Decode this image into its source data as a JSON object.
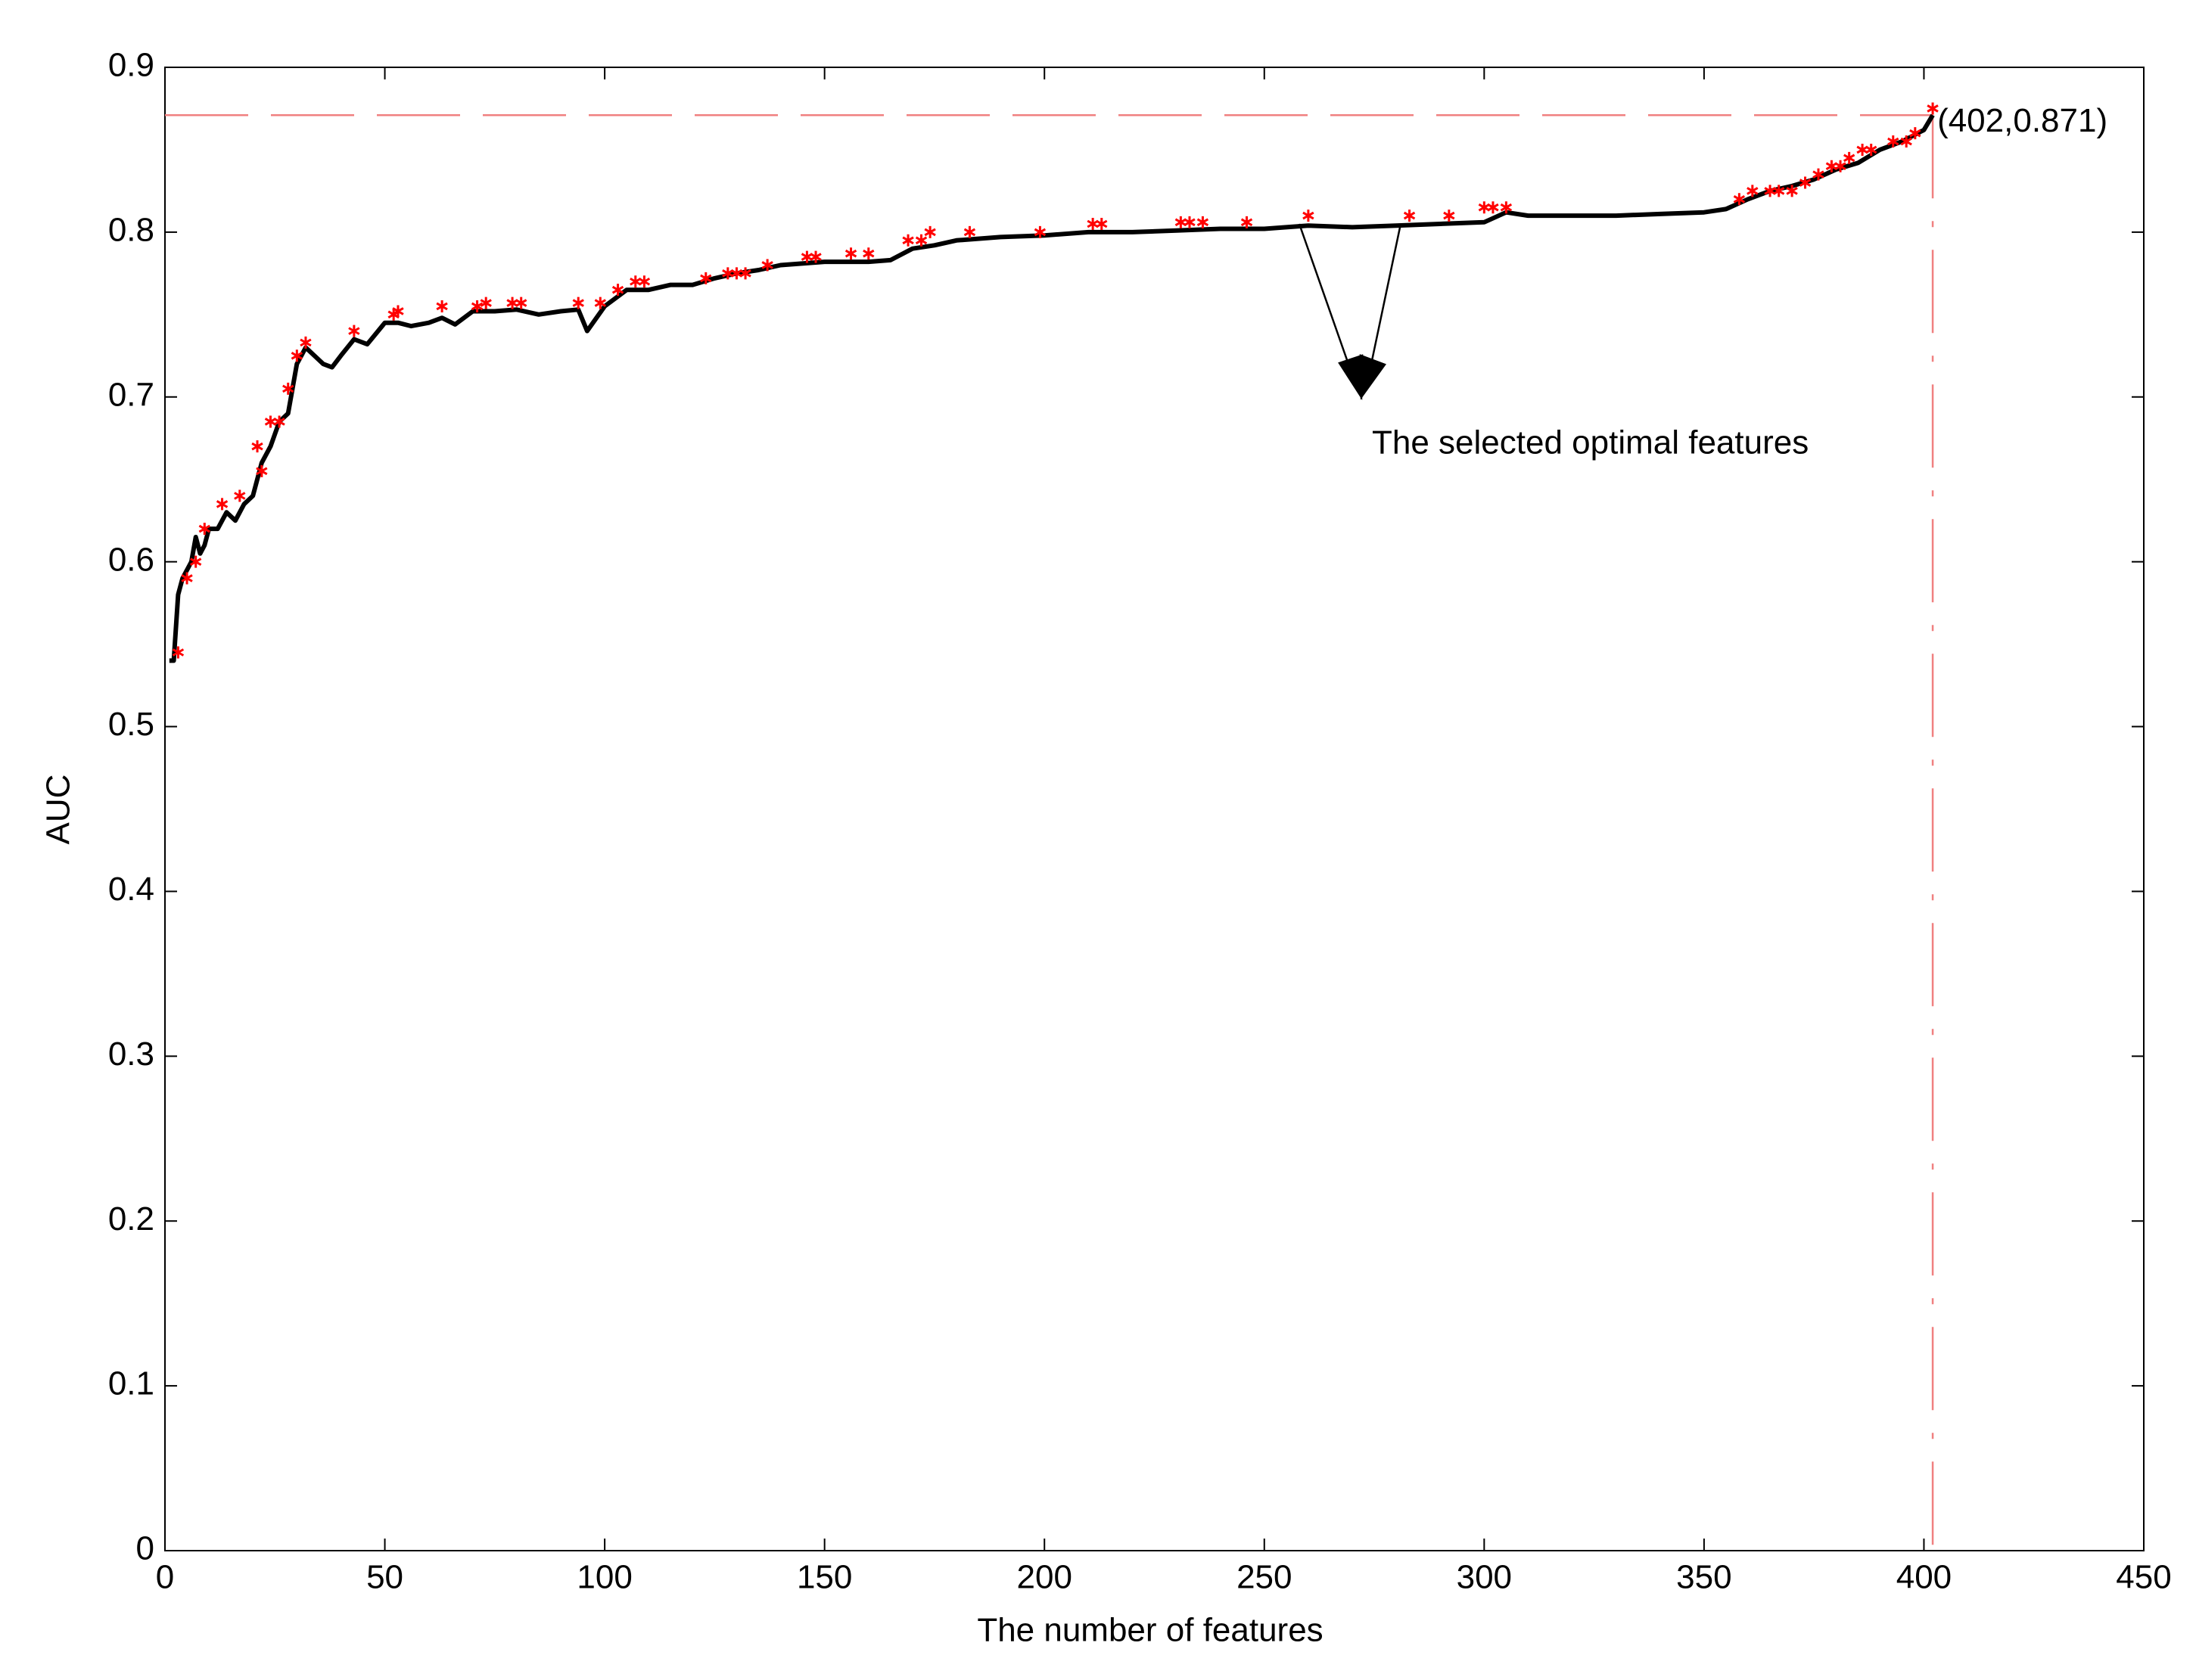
{
  "chart_data": {
    "type": "line",
    "xlabel": "The number of features",
    "ylabel": "AUC",
    "xlim": [
      0,
      450
    ],
    "xticks": [
      0,
      50,
      100,
      150,
      200,
      250,
      300,
      350,
      400,
      450
    ],
    "ylim": [
      0,
      0.9
    ],
    "yticks": [
      0,
      0.1,
      0.2,
      0.3,
      0.4,
      0.5,
      0.6,
      0.7,
      0.8,
      0.9
    ],
    "series": [
      {
        "type": "line",
        "color": "#000000",
        "x": [
          1,
          2,
          3,
          4,
          5,
          6,
          7,
          8,
          9,
          10,
          12,
          14,
          16,
          18,
          20,
          22,
          24,
          26,
          28,
          30,
          32,
          34,
          36,
          38,
          40,
          43,
          46,
          50,
          53,
          56,
          60,
          63,
          66,
          70,
          75,
          80,
          85,
          90,
          94,
          96,
          100,
          105,
          110,
          115,
          120,
          125,
          130,
          135,
          140,
          150,
          160,
          165,
          170,
          175,
          180,
          190,
          200,
          210,
          220,
          230,
          240,
          250,
          260,
          270,
          280,
          290,
          300,
          305,
          310,
          320,
          330,
          340,
          350,
          355,
          360,
          365,
          370,
          375,
          380,
          385,
          390,
          395,
          400,
          402
        ],
        "values": [
          0.54,
          0.54,
          0.58,
          0.59,
          0.595,
          0.6,
          0.615,
          0.605,
          0.61,
          0.62,
          0.62,
          0.63,
          0.625,
          0.635,
          0.64,
          0.66,
          0.67,
          0.685,
          0.69,
          0.72,
          0.73,
          0.725,
          0.72,
          0.718,
          0.725,
          0.735,
          0.732,
          0.745,
          0.745,
          0.743,
          0.745,
          0.748,
          0.744,
          0.752,
          0.752,
          0.753,
          0.75,
          0.752,
          0.753,
          0.74,
          0.755,
          0.765,
          0.765,
          0.768,
          0.768,
          0.772,
          0.775,
          0.777,
          0.78,
          0.782,
          0.782,
          0.783,
          0.79,
          0.792,
          0.795,
          0.797,
          0.798,
          0.8,
          0.8,
          0.801,
          0.802,
          0.802,
          0.804,
          0.803,
          0.804,
          0.805,
          0.806,
          0.812,
          0.81,
          0.81,
          0.81,
          0.811,
          0.812,
          0.814,
          0.82,
          0.825,
          0.828,
          0.832,
          0.838,
          0.842,
          0.85,
          0.855,
          0.862,
          0.871
        ]
      },
      {
        "type": "scatter",
        "marker": "*",
        "color": "#ff0000",
        "x": [
          3,
          5,
          7,
          9,
          13,
          17,
          21,
          22,
          24,
          26,
          28,
          30,
          32,
          43,
          52,
          53,
          63,
          71,
          73,
          79,
          81,
          94,
          99,
          103,
          107,
          109,
          123,
          128,
          130,
          132,
          137,
          146,
          148,
          156,
          160,
          169,
          172,
          174,
          183,
          199,
          211,
          213,
          231,
          233,
          236,
          246,
          260,
          283,
          292,
          300,
          302,
          305,
          358,
          361,
          365,
          367,
          370,
          373,
          376,
          379,
          381,
          383,
          386,
          388,
          393,
          396,
          398,
          402
        ],
        "values": [
          0.545,
          0.59,
          0.6,
          0.62,
          0.635,
          0.64,
          0.67,
          0.655,
          0.685,
          0.685,
          0.705,
          0.725,
          0.733,
          0.74,
          0.75,
          0.752,
          0.755,
          0.755,
          0.757,
          0.757,
          0.757,
          0.757,
          0.757,
          0.765,
          0.77,
          0.77,
          0.772,
          0.775,
          0.775,
          0.775,
          0.78,
          0.785,
          0.785,
          0.787,
          0.787,
          0.795,
          0.795,
          0.8,
          0.8,
          0.8,
          0.805,
          0.805,
          0.806,
          0.806,
          0.806,
          0.806,
          0.81,
          0.81,
          0.81,
          0.815,
          0.815,
          0.815,
          0.82,
          0.825,
          0.825,
          0.825,
          0.825,
          0.83,
          0.835,
          0.84,
          0.84,
          0.845,
          0.85,
          0.85,
          0.855,
          0.855,
          0.86,
          0.875
        ]
      }
    ],
    "hline": 0.871,
    "vline": 402,
    "refline_color": "#f08080",
    "annotations": [
      {
        "text": "(402,0.871)"
      },
      {
        "text": "The selected optimal features"
      }
    ]
  }
}
